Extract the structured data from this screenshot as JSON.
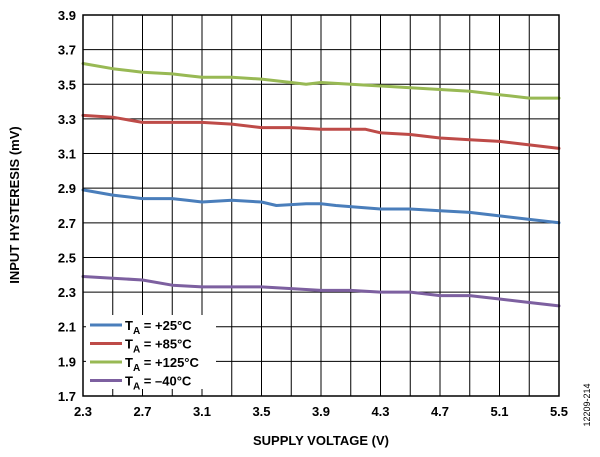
{
  "chart_data": {
    "type": "line",
    "xlabel": "SUPPLY VOLTAGE (V)",
    "ylabel": "INPUT HYSTERESIS (mV)",
    "xlim": [
      2.3,
      5.5
    ],
    "ylim": [
      1.7,
      3.9
    ],
    "xticks": [
      "2.3",
      "2.7",
      "3.1",
      "3.5",
      "3.9",
      "4.3",
      "4.7",
      "5.1",
      "5.5"
    ],
    "yticks": [
      "1.7",
      "1.9",
      "2.1",
      "2.3",
      "2.5",
      "2.7",
      "2.9",
      "3.1",
      "3.3",
      "3.5",
      "3.7",
      "3.9"
    ],
    "grid": true,
    "legend_position": "bottom-left",
    "figure_id": "12209-214",
    "series": [
      {
        "name": "+25°C",
        "color": "#4a7ebb",
        "x": [
          2.3,
          2.5,
          2.7,
          2.9,
          3.0,
          3.1,
          3.3,
          3.5,
          3.6,
          3.8,
          3.9,
          4.0,
          4.3,
          4.5,
          4.7,
          4.9,
          5.1,
          5.3,
          5.5
        ],
        "y": [
          2.89,
          2.86,
          2.84,
          2.84,
          2.83,
          2.82,
          2.83,
          2.82,
          2.8,
          2.81,
          2.81,
          2.8,
          2.78,
          2.78,
          2.77,
          2.76,
          2.74,
          2.72,
          2.7
        ]
      },
      {
        "name": "+85°C",
        "color": "#be4b48",
        "x": [
          2.3,
          2.5,
          2.7,
          2.9,
          3.1,
          3.3,
          3.5,
          3.7,
          3.9,
          4.1,
          4.2,
          4.3,
          4.5,
          4.7,
          4.9,
          5.1,
          5.3,
          5.5
        ],
        "y": [
          3.32,
          3.31,
          3.28,
          3.28,
          3.28,
          3.27,
          3.25,
          3.25,
          3.24,
          3.24,
          3.24,
          3.22,
          3.21,
          3.19,
          3.18,
          3.17,
          3.15,
          3.13
        ]
      },
      {
        "name": "+125°C",
        "color": "#98b954",
        "x": [
          2.3,
          2.5,
          2.7,
          2.9,
          3.0,
          3.1,
          3.3,
          3.5,
          3.7,
          3.8,
          3.9,
          4.1,
          4.3,
          4.5,
          4.7,
          4.9,
          5.1,
          5.3,
          5.5
        ],
        "y": [
          3.62,
          3.59,
          3.57,
          3.56,
          3.55,
          3.54,
          3.54,
          3.53,
          3.51,
          3.5,
          3.51,
          3.5,
          3.49,
          3.48,
          3.47,
          3.46,
          3.44,
          3.42,
          3.42
        ]
      },
      {
        "name": "–40°C",
        "color": "#7d60a0",
        "x": [
          2.3,
          2.5,
          2.7,
          2.9,
          3.1,
          3.3,
          3.5,
          3.7,
          3.9,
          4.1,
          4.3,
          4.5,
          4.7,
          4.9,
          5.1,
          5.3,
          5.5
        ],
        "y": [
          2.39,
          2.38,
          2.37,
          2.34,
          2.33,
          2.33,
          2.33,
          2.32,
          2.31,
          2.31,
          2.3,
          2.3,
          2.28,
          2.28,
          2.26,
          2.24,
          2.22
        ]
      }
    ],
    "legend_prefix": "T",
    "legend_prefix_sub": "A",
    "legend_equals": " = "
  }
}
